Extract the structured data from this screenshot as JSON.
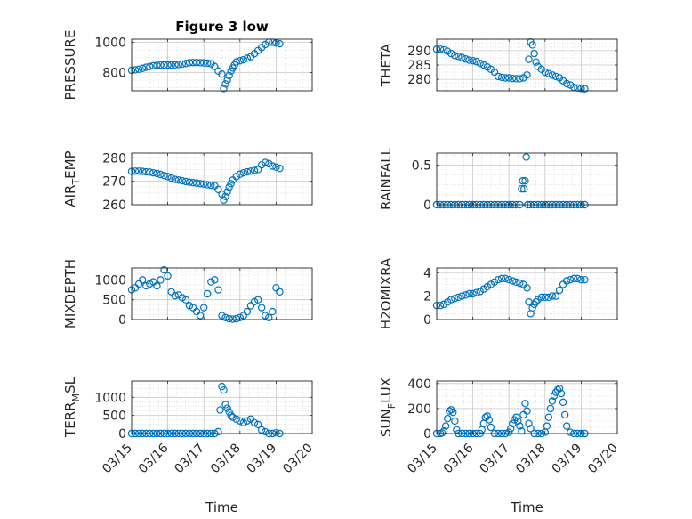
{
  "figure": {
    "title": "Figure 3 low"
  },
  "chart_data": [
    {
      "type": "scatter",
      "title": "Figure 3 low",
      "ylabel": "PRESSURE",
      "xlabel": "",
      "xlim": [
        "03/15",
        "03/20"
      ],
      "ylim": [
        680,
        1020
      ],
      "yticks": [
        800,
        1000
      ],
      "xtick_labels": [
        "03/15",
        "03/16",
        "03/17",
        "03/18",
        "03/19",
        "03/20"
      ],
      "grid": true,
      "minor_grid": true,
      "series": [
        {
          "x": [
            15.0,
            15.1,
            15.2,
            15.3,
            15.4,
            15.5,
            15.6,
            15.7,
            15.8,
            15.9,
            16.0,
            16.1,
            16.2,
            16.3,
            16.4,
            16.5,
            16.6,
            16.7,
            16.8,
            16.9,
            17.0,
            17.1,
            17.2,
            17.3,
            17.4,
            17.5,
            17.55,
            17.6,
            17.65,
            17.7,
            17.75,
            17.8,
            17.85,
            17.9,
            18.0,
            18.1,
            18.2,
            18.3,
            18.4,
            18.5,
            18.6,
            18.7,
            18.8,
            18.9,
            19.0,
            19.1
          ],
          "y": [
            815,
            818,
            822,
            828,
            835,
            840,
            845,
            848,
            849,
            850,
            850,
            850,
            851,
            853,
            856,
            860,
            865,
            866,
            866,
            865,
            864,
            862,
            858,
            840,
            810,
            790,
            695,
            725,
            750,
            780,
            810,
            830,
            850,
            870,
            878,
            885,
            895,
            905,
            925,
            945,
            965,
            985,
            1000,
            1000,
            995,
            990
          ]
        }
      ]
    },
    {
      "type": "scatter",
      "ylabel": "THETA",
      "xlabel": "",
      "xlim": [
        "03/15",
        "03/20"
      ],
      "ylim": [
        276,
        294
      ],
      "yticks": [
        280,
        285,
        290
      ],
      "xtick_labels": [
        "03/15",
        "03/16",
        "03/17",
        "03/18",
        "03/19",
        "03/20"
      ],
      "grid": true,
      "minor_grid": true,
      "series": [
        {
          "x": [
            15.0,
            15.1,
            15.2,
            15.3,
            15.4,
            15.5,
            15.6,
            15.7,
            15.8,
            15.9,
            16.0,
            16.1,
            16.2,
            16.3,
            16.4,
            16.5,
            16.6,
            16.7,
            16.8,
            16.9,
            17.0,
            17.1,
            17.2,
            17.3,
            17.4,
            17.5,
            17.55,
            17.6,
            17.65,
            17.7,
            17.75,
            17.8,
            17.9,
            18.0,
            18.1,
            18.2,
            18.3,
            18.4,
            18.5,
            18.6,
            18.7,
            18.8,
            18.9,
            19.0,
            19.1
          ],
          "y": [
            290.5,
            290.5,
            290.3,
            289.8,
            289.0,
            288.3,
            288.0,
            287.6,
            287.1,
            286.7,
            286.5,
            286.2,
            285.6,
            285.0,
            284.3,
            283.5,
            282.5,
            281.0,
            280.7,
            280.5,
            280.5,
            280.3,
            280.2,
            280.2,
            280.5,
            281.5,
            287.0,
            293.0,
            292.0,
            289.0,
            286.0,
            284.5,
            283.5,
            282.5,
            282.0,
            281.5,
            281.0,
            280.5,
            279.5,
            278.5,
            278.0,
            277.2,
            277.0,
            276.8,
            276.7
          ]
        }
      ]
    },
    {
      "type": "scatter",
      "ylabel": "AIR_TEMP",
      "ylabel_main": "AIR",
      "ylabel_sub": "T",
      "ylabel_rest": "EMP",
      "xlabel": "",
      "xlim": [
        "03/15",
        "03/20"
      ],
      "ylim": [
        260,
        282
      ],
      "yticks": [
        260,
        270,
        280
      ],
      "xtick_labels": [
        "03/15",
        "03/16",
        "03/17",
        "03/18",
        "03/19",
        "03/20"
      ],
      "grid": true,
      "minor_grid": true,
      "series": [
        {
          "x": [
            15.0,
            15.1,
            15.2,
            15.3,
            15.4,
            15.5,
            15.6,
            15.7,
            15.8,
            15.9,
            16.0,
            16.1,
            16.2,
            16.3,
            16.4,
            16.5,
            16.6,
            16.7,
            16.8,
            16.9,
            17.0,
            17.1,
            17.2,
            17.3,
            17.4,
            17.5,
            17.55,
            17.6,
            17.65,
            17.7,
            17.75,
            17.8,
            17.9,
            18.0,
            18.1,
            18.2,
            18.3,
            18.4,
            18.5,
            18.6,
            18.7,
            18.8,
            18.9,
            19.0,
            19.1
          ],
          "y": [
            274.2,
            274.3,
            274.3,
            274.2,
            274.0,
            273.9,
            273.6,
            273.3,
            272.9,
            272.4,
            272.0,
            271.4,
            270.8,
            270.5,
            270.2,
            269.9,
            269.6,
            269.4,
            269.2,
            269.0,
            268.8,
            268.5,
            268.3,
            268.1,
            266.5,
            264.5,
            262.0,
            263.5,
            265.5,
            267.5,
            269.0,
            270.5,
            272.0,
            273.0,
            273.6,
            274.0,
            274.3,
            274.6,
            275.0,
            277.0,
            278.0,
            277.5,
            276.5,
            276.0,
            275.5
          ]
        }
      ]
    },
    {
      "type": "scatter",
      "ylabel": "RAINFALL",
      "xlabel": "",
      "xlim": [
        "03/15",
        "03/20"
      ],
      "ylim": [
        0,
        0.65
      ],
      "yticks": [
        0,
        0.5
      ],
      "xtick_labels": [
        "03/15",
        "03/16",
        "03/17",
        "03/18",
        "03/19",
        "03/20"
      ],
      "grid": true,
      "minor_grid": true,
      "series": [
        {
          "x": [
            15.0,
            15.1,
            15.2,
            15.3,
            15.4,
            15.5,
            15.6,
            15.7,
            15.8,
            15.9,
            16.0,
            16.1,
            16.2,
            16.3,
            16.4,
            16.5,
            16.6,
            16.7,
            16.8,
            16.9,
            17.0,
            17.1,
            17.2,
            17.3,
            17.35,
            17.38,
            17.42,
            17.45,
            17.48,
            17.52,
            17.6,
            17.7,
            17.8,
            17.9,
            18.0,
            18.1,
            18.2,
            18.3,
            18.4,
            18.5,
            18.6,
            18.7,
            18.8,
            18.9,
            19.0,
            19.1
          ],
          "y": [
            0,
            0,
            0,
            0,
            0,
            0,
            0,
            0,
            0,
            0,
            0,
            0,
            0,
            0,
            0,
            0,
            0,
            0,
            0,
            0,
            0,
            0,
            0,
            0,
            0.2,
            0.3,
            0.2,
            0.3,
            0.6,
            0,
            0,
            0,
            0,
            0,
            0,
            0,
            0,
            0,
            0,
            0,
            0,
            0,
            0,
            0,
            0,
            0
          ]
        }
      ]
    },
    {
      "type": "scatter",
      "ylabel": "MIXDEPTH",
      "xlabel": "",
      "xlim": [
        "03/15",
        "03/20"
      ],
      "ylim": [
        0,
        1300
      ],
      "yticks": [
        0,
        500,
        1000
      ],
      "xtick_labels": [
        "03/15",
        "03/16",
        "03/17",
        "03/18",
        "03/19",
        "03/20"
      ],
      "grid": true,
      "minor_grid": true,
      "series": [
        {
          "x": [
            15.0,
            15.1,
            15.2,
            15.3,
            15.4,
            15.5,
            15.6,
            15.7,
            15.8,
            15.9,
            16.0,
            16.1,
            16.2,
            16.3,
            16.4,
            16.5,
            16.6,
            16.7,
            16.8,
            16.9,
            17.0,
            17.1,
            17.2,
            17.3,
            17.4,
            17.5,
            17.6,
            17.7,
            17.8,
            17.9,
            18.0,
            18.1,
            18.2,
            18.3,
            18.4,
            18.5,
            18.6,
            18.7,
            18.8,
            18.9,
            19.0,
            19.1
          ],
          "y": [
            750,
            800,
            900,
            1000,
            850,
            900,
            950,
            850,
            1000,
            1250,
            1100,
            700,
            600,
            620,
            550,
            500,
            350,
            300,
            200,
            100,
            300,
            650,
            950,
            1000,
            750,
            100,
            50,
            20,
            10,
            20,
            50,
            100,
            200,
            350,
            450,
            500,
            300,
            100,
            50,
            200,
            800,
            700
          ]
        }
      ]
    },
    {
      "type": "scatter",
      "ylabel": "H2OMIXRA",
      "xlabel": "",
      "xlim": [
        "03/15",
        "03/20"
      ],
      "ylim": [
        0,
        4.4
      ],
      "yticks": [
        0,
        2,
        4
      ],
      "xtick_labels": [
        "03/15",
        "03/16",
        "03/17",
        "03/18",
        "03/19",
        "03/20"
      ],
      "grid": true,
      "minor_grid": true,
      "series": [
        {
          "x": [
            15.0,
            15.1,
            15.2,
            15.3,
            15.4,
            15.5,
            15.6,
            15.7,
            15.8,
            15.9,
            16.0,
            16.1,
            16.2,
            16.3,
            16.4,
            16.5,
            16.6,
            16.7,
            16.8,
            16.9,
            17.0,
            17.1,
            17.2,
            17.3,
            17.4,
            17.5,
            17.55,
            17.6,
            17.65,
            17.7,
            17.75,
            17.8,
            17.9,
            18.0,
            18.1,
            18.2,
            18.3,
            18.4,
            18.5,
            18.6,
            18.7,
            18.8,
            18.9,
            19.0,
            19.1
          ],
          "y": [
            1.2,
            1.2,
            1.3,
            1.5,
            1.7,
            1.8,
            1.9,
            2.0,
            2.1,
            2.2,
            2.2,
            2.3,
            2.4,
            2.6,
            2.8,
            3.0,
            3.2,
            3.4,
            3.5,
            3.5,
            3.4,
            3.3,
            3.2,
            3.1,
            3.0,
            2.7,
            1.5,
            0.5,
            1.0,
            1.3,
            1.5,
            1.7,
            1.9,
            1.9,
            1.9,
            2.0,
            2.0,
            2.5,
            3.0,
            3.3,
            3.4,
            3.5,
            3.5,
            3.4,
            3.4
          ]
        }
      ]
    },
    {
      "type": "scatter",
      "ylabel": "TERR_MSL",
      "ylabel_main": "TERR",
      "ylabel_sub": "M",
      "ylabel_rest": "SL",
      "xlabel": "Time",
      "xlim": [
        "03/15",
        "03/20"
      ],
      "ylim": [
        0,
        1450
      ],
      "yticks": [
        0,
        500,
        1000
      ],
      "xtick_labels": [
        "03/15",
        "03/16",
        "03/17",
        "03/18",
        "03/19",
        "03/20"
      ],
      "grid": true,
      "minor_grid": true,
      "series": [
        {
          "x": [
            15.0,
            15.1,
            15.2,
            15.3,
            15.4,
            15.5,
            15.6,
            15.7,
            15.8,
            15.9,
            16.0,
            16.1,
            16.2,
            16.3,
            16.4,
            16.5,
            16.6,
            16.7,
            16.8,
            16.9,
            17.0,
            17.1,
            17.2,
            17.3,
            17.4,
            17.45,
            17.5,
            17.55,
            17.6,
            17.65,
            17.7,
            17.75,
            17.8,
            17.9,
            18.0,
            18.1,
            18.2,
            18.3,
            18.4,
            18.5,
            18.6,
            18.7,
            18.8,
            18.9,
            19.0,
            19.1
          ],
          "y": [
            0,
            0,
            0,
            0,
            0,
            0,
            0,
            0,
            0,
            0,
            0,
            0,
            0,
            0,
            0,
            0,
            0,
            0,
            0,
            0,
            0,
            0,
            0,
            0,
            50,
            650,
            1300,
            1200,
            800,
            700,
            600,
            500,
            450,
            400,
            350,
            300,
            350,
            400,
            300,
            250,
            100,
            50,
            0,
            0,
            20,
            0
          ]
        }
      ]
    },
    {
      "type": "scatter",
      "ylabel": "SUN_FLUX",
      "ylabel_main": "SUN",
      "ylabel_sub": "F",
      "ylabel_rest": "LUX",
      "xlabel": "Time",
      "xlim": [
        "03/15",
        "03/20"
      ],
      "ylim": [
        0,
        420
      ],
      "yticks": [
        0,
        200,
        400
      ],
      "xtick_labels": [
        "03/15",
        "03/16",
        "03/17",
        "03/18",
        "03/19",
        "03/20"
      ],
      "grid": true,
      "minor_grid": true,
      "series": [
        {
          "x": [
            15.0,
            15.1,
            15.15,
            15.2,
            15.25,
            15.3,
            15.35,
            15.4,
            15.45,
            15.5,
            15.55,
            15.6,
            15.7,
            15.8,
            15.9,
            16.0,
            16.1,
            16.2,
            16.25,
            16.3,
            16.35,
            16.4,
            16.45,
            16.5,
            16.6,
            16.7,
            16.8,
            16.9,
            17.0,
            17.05,
            17.1,
            17.15,
            17.2,
            17.25,
            17.3,
            17.35,
            17.4,
            17.45,
            17.5,
            17.55,
            17.6,
            17.7,
            17.8,
            17.9,
            18.0,
            18.05,
            18.1,
            18.15,
            18.2,
            18.25,
            18.3,
            18.35,
            18.4,
            18.45,
            18.5,
            18.55,
            18.6,
            18.7,
            18.8,
            18.9,
            19.0,
            19.1
          ],
          "y": [
            0,
            0,
            5,
            20,
            60,
            120,
            180,
            190,
            170,
            100,
            30,
            0,
            0,
            0,
            0,
            0,
            0,
            0,
            30,
            80,
            130,
            140,
            110,
            50,
            0,
            0,
            0,
            0,
            10,
            40,
            80,
            110,
            130,
            100,
            60,
            20,
            150,
            240,
            180,
            80,
            40,
            0,
            0,
            0,
            10,
            60,
            130,
            200,
            260,
            300,
            330,
            350,
            360,
            320,
            250,
            150,
            60,
            10,
            0,
            0,
            0,
            0
          ]
        }
      ]
    }
  ]
}
